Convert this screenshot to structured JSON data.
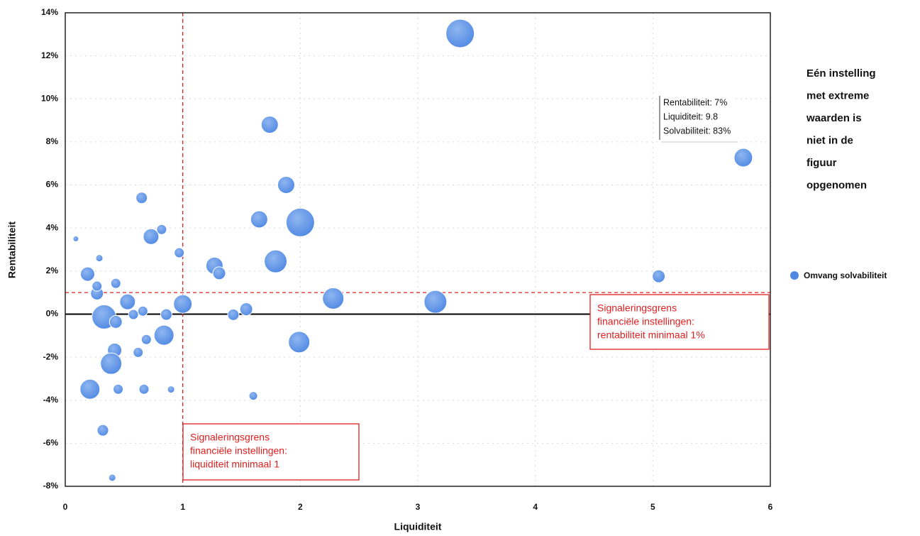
{
  "chart_data": {
    "type": "bubble",
    "x_label": "Liquiditeit",
    "y_label": "Rentabiliteit",
    "xlim": [
      0,
      6
    ],
    "ylim": [
      -8,
      14
    ],
    "xticks": [
      0,
      1,
      2,
      3,
      4,
      5,
      6
    ],
    "yticks": [
      {
        "value": -8,
        "label": "-8%"
      },
      {
        "value": -6,
        "label": "-6%"
      },
      {
        "value": -4,
        "label": "-4%"
      },
      {
        "value": -2,
        "label": "-2%"
      },
      {
        "value": 0,
        "label": "0%"
      },
      {
        "value": 2,
        "label": "2%"
      },
      {
        "value": 4,
        "label": "4%"
      },
      {
        "value": 6,
        "label": "6%"
      },
      {
        "value": 8,
        "label": "8%"
      },
      {
        "value": 10,
        "label": "10%"
      },
      {
        "value": 12,
        "label": "12%"
      },
      {
        "value": 14,
        "label": "14%"
      }
    ],
    "grid": true,
    "series": [
      {
        "name": "Omvang solvabiliteit",
        "color": "#4f88e3",
        "x": [
          3.36,
          1.74,
          1.88,
          2.0,
          1.65,
          1.79,
          1.27,
          1.31,
          2.28,
          3.15,
          1.99,
          5.77,
          5.05,
          0.65,
          0.73,
          0.82,
          0.97,
          1.0,
          0.19,
          0.27,
          0.43,
          0.33,
          0.53,
          0.43,
          0.58,
          0.66,
          0.84,
          0.86,
          0.69,
          0.42,
          0.39,
          0.21,
          0.45,
          0.67,
          0.62,
          0.32,
          0.4,
          1.6,
          1.43,
          1.54,
          0.9,
          0.09,
          0.29,
          0.27
        ],
        "values": [
          13.04,
          8.8,
          6.0,
          4.26,
          4.4,
          2.45,
          2.25,
          1.9,
          0.73,
          0.57,
          -1.3,
          7.27,
          1.76,
          5.4,
          3.6,
          3.93,
          2.85,
          0.47,
          1.86,
          0.96,
          1.43,
          -0.13,
          0.57,
          -0.36,
          -0.02,
          0.14,
          -0.98,
          -0.02,
          -1.18,
          -1.68,
          -2.3,
          -3.49,
          -3.49,
          -3.49,
          -1.78,
          -5.4,
          -7.6,
          -3.8,
          -0.03,
          0.23,
          -3.5,
          3.5,
          2.6,
          1.3
        ],
        "sizes": [
          20,
          12,
          12,
          20,
          12,
          16,
          12,
          9,
          15,
          16,
          15,
          13,
          9,
          8,
          11,
          7,
          7,
          13,
          10,
          9,
          7,
          17,
          11,
          9,
          7,
          7,
          14,
          8,
          7,
          10,
          15,
          14,
          7,
          7,
          7,
          8,
          5,
          6,
          8,
          9,
          5,
          4,
          5,
          7
        ]
      }
    ],
    "reference_lines": [
      {
        "axis": "y",
        "value": 0,
        "color": "#000000",
        "dashed": false
      },
      {
        "axis": "y",
        "value": 1,
        "color": "#e02020",
        "dashed": true
      },
      {
        "axis": "x",
        "value": 1,
        "color": "#e02020",
        "dashed": true
      }
    ],
    "annotations": {
      "rentabiliteit_box": [
        "Signaleringsgrens",
        "financiële instellingen:",
        "rentabiliteit minimaal 1%"
      ],
      "liquiditeit_box": [
        "Signaleringsgrens",
        "financiële instellingen:",
        "liquiditeit minimaal 1"
      ],
      "callout": [
        "Rentabiliteit: 7%",
        "Liquiditeit: 9.8",
        "Solvabiliteit: 83%"
      ],
      "note": [
        "Eén instelling",
        "met extreme",
        "waarden is",
        "niet in de",
        "figuur",
        "opgenomen"
      ]
    }
  }
}
